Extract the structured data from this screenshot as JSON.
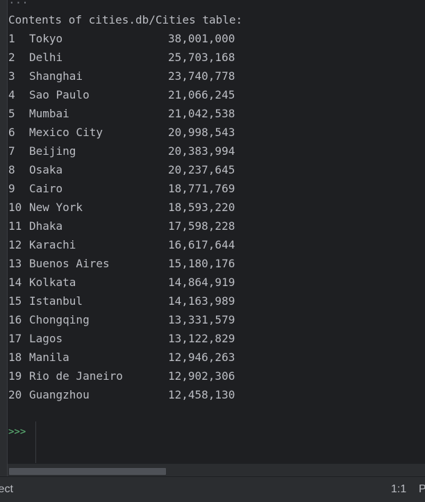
{
  "console": {
    "ellipsis": "...",
    "header": "Contents of cities.db/Cities table:",
    "rows": [
      {
        "index": "1",
        "city": "Tokyo",
        "population": "38,001,000"
      },
      {
        "index": "2",
        "city": "Delhi",
        "population": "25,703,168"
      },
      {
        "index": "3",
        "city": "Shanghai",
        "population": "23,740,778"
      },
      {
        "index": "4",
        "city": "Sao Paulo",
        "population": "21,066,245"
      },
      {
        "index": "5",
        "city": "Mumbai",
        "population": "21,042,538"
      },
      {
        "index": "6",
        "city": "Mexico City",
        "population": "20,998,543"
      },
      {
        "index": "7",
        "city": "Beijing",
        "population": "20,383,994"
      },
      {
        "index": "8",
        "city": "Osaka",
        "population": "20,237,645"
      },
      {
        "index": "9",
        "city": "Cairo",
        "population": "18,771,769"
      },
      {
        "index": "10",
        "city": "New York",
        "population": "18,593,220"
      },
      {
        "index": "11",
        "city": "Dhaka",
        "population": "17,598,228"
      },
      {
        "index": "12",
        "city": "Karachi",
        "population": "16,617,644"
      },
      {
        "index": "13",
        "city": "Buenos Aires",
        "population": "15,180,176"
      },
      {
        "index": "14",
        "city": "Kolkata",
        "population": "14,864,919"
      },
      {
        "index": "15",
        "city": "Istanbul",
        "population": "14,163,989"
      },
      {
        "index": "16",
        "city": "Chongqing",
        "population": "13,331,579"
      },
      {
        "index": "17",
        "city": "Lagos",
        "population": "13,122,829"
      },
      {
        "index": "18",
        "city": "Manila",
        "population": "12,946,263"
      },
      {
        "index": "19",
        "city": "Rio de Janeiro",
        "population": "12,902,306"
      },
      {
        "index": "20",
        "city": "Guangzhou",
        "population": "12,458,130"
      }
    ],
    "prompt": ">>>"
  },
  "statusbar": {
    "left_text": "ject",
    "caret_position": "1:1",
    "right_text": "P"
  },
  "colors": {
    "background": "#1e1f22",
    "text": "#bcbec4",
    "prompt": "#5fb878"
  }
}
